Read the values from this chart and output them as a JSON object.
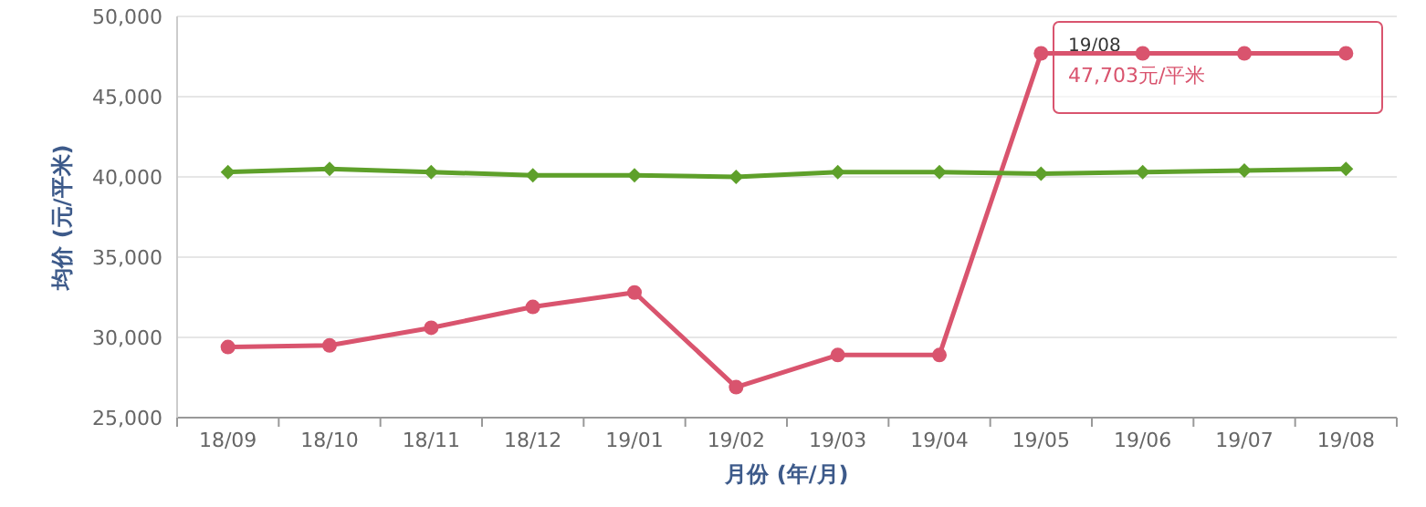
{
  "chart_data": {
    "type": "line",
    "xlabel": "月份 (年/月)",
    "ylabel": "均价 (元/平米)",
    "categories": [
      "18/09",
      "18/10",
      "18/11",
      "18/12",
      "19/01",
      "19/02",
      "19/03",
      "19/04",
      "19/05",
      "19/06",
      "19/07",
      "19/08"
    ],
    "series": [
      {
        "color": "#d9546e",
        "marker": "circle",
        "values": [
          29400,
          29500,
          30600,
          31900,
          32800,
          26900,
          28900,
          28900,
          47700,
          47700,
          47700,
          47703
        ]
      },
      {
        "color": "#5ea02a",
        "marker": "diamond",
        "values": [
          40300,
          40500,
          40300,
          40100,
          40100,
          40000,
          40300,
          40300,
          40200,
          40300,
          40400,
          40500
        ]
      }
    ],
    "ylim": [
      25000,
      50000
    ],
    "yticks": [
      {
        "value": 25000,
        "label": "25,000"
      },
      {
        "value": 30000,
        "label": "30,000"
      },
      {
        "value": 35000,
        "label": "35,000"
      },
      {
        "value": 40000,
        "label": "40,000"
      },
      {
        "value": 45000,
        "label": "45,000"
      },
      {
        "value": 50000,
        "label": "50,000"
      }
    ],
    "grid": "y",
    "line_style": "solid",
    "annotations": [
      "19/08",
      "47,703元/平米"
    ]
  }
}
